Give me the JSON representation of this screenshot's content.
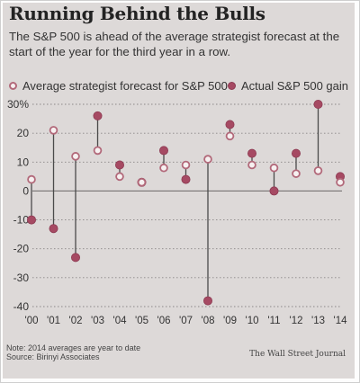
{
  "header": {
    "title": "Running Behind the Bulls",
    "subtitle": "The S&P 500 is ahead of the average strategist forecast at the start of the year for the third year in a row."
  },
  "chart_data": {
    "type": "scatter",
    "title": "Running Behind the Bulls",
    "subtitle": "The S&P 500 is ahead of the average strategist forecast at the start of the year for the third year in a row.",
    "xlabel": "",
    "ylabel": "",
    "categories": [
      "'00",
      "'01",
      "'02",
      "'03",
      "'04",
      "'05",
      "'06",
      "'07",
      "'08",
      "'09",
      "'10",
      "'11",
      "'12",
      "'13",
      "'14"
    ],
    "ylim": [
      -40,
      30
    ],
    "yticks": [
      30,
      20,
      10,
      0,
      -10,
      -20,
      -30,
      -40
    ],
    "ytick_labels": [
      "30%",
      "20",
      "10",
      "0",
      "-10",
      "-20",
      "-30",
      "-40"
    ],
    "grid": "horizontal dotted",
    "legend_position": "top",
    "series": [
      {
        "name": "Average strategist forecast for S&P 500",
        "marker": "open circle",
        "color": "#b2697a",
        "values": [
          4,
          21,
          12,
          14,
          5,
          3,
          8,
          9,
          11,
          19,
          9,
          8,
          6,
          7,
          3
        ]
      },
      {
        "name": "Actual S&P 500 gain",
        "marker": "filled circle",
        "color": "#a64a63",
        "values": [
          -10,
          -13,
          -23,
          26,
          9,
          3,
          14,
          4,
          -38,
          23,
          13,
          0,
          13,
          30,
          5
        ]
      }
    ]
  },
  "footer": {
    "note": "Note: 2014 averages are year to date",
    "source": "Source: Birinyi Associates",
    "credit": "The Wall Street Journal"
  },
  "colors": {
    "background": "#ddd9d8",
    "marker": "#a64a63",
    "gridline": "#8a8686",
    "connector": "#4a4a4a"
  }
}
